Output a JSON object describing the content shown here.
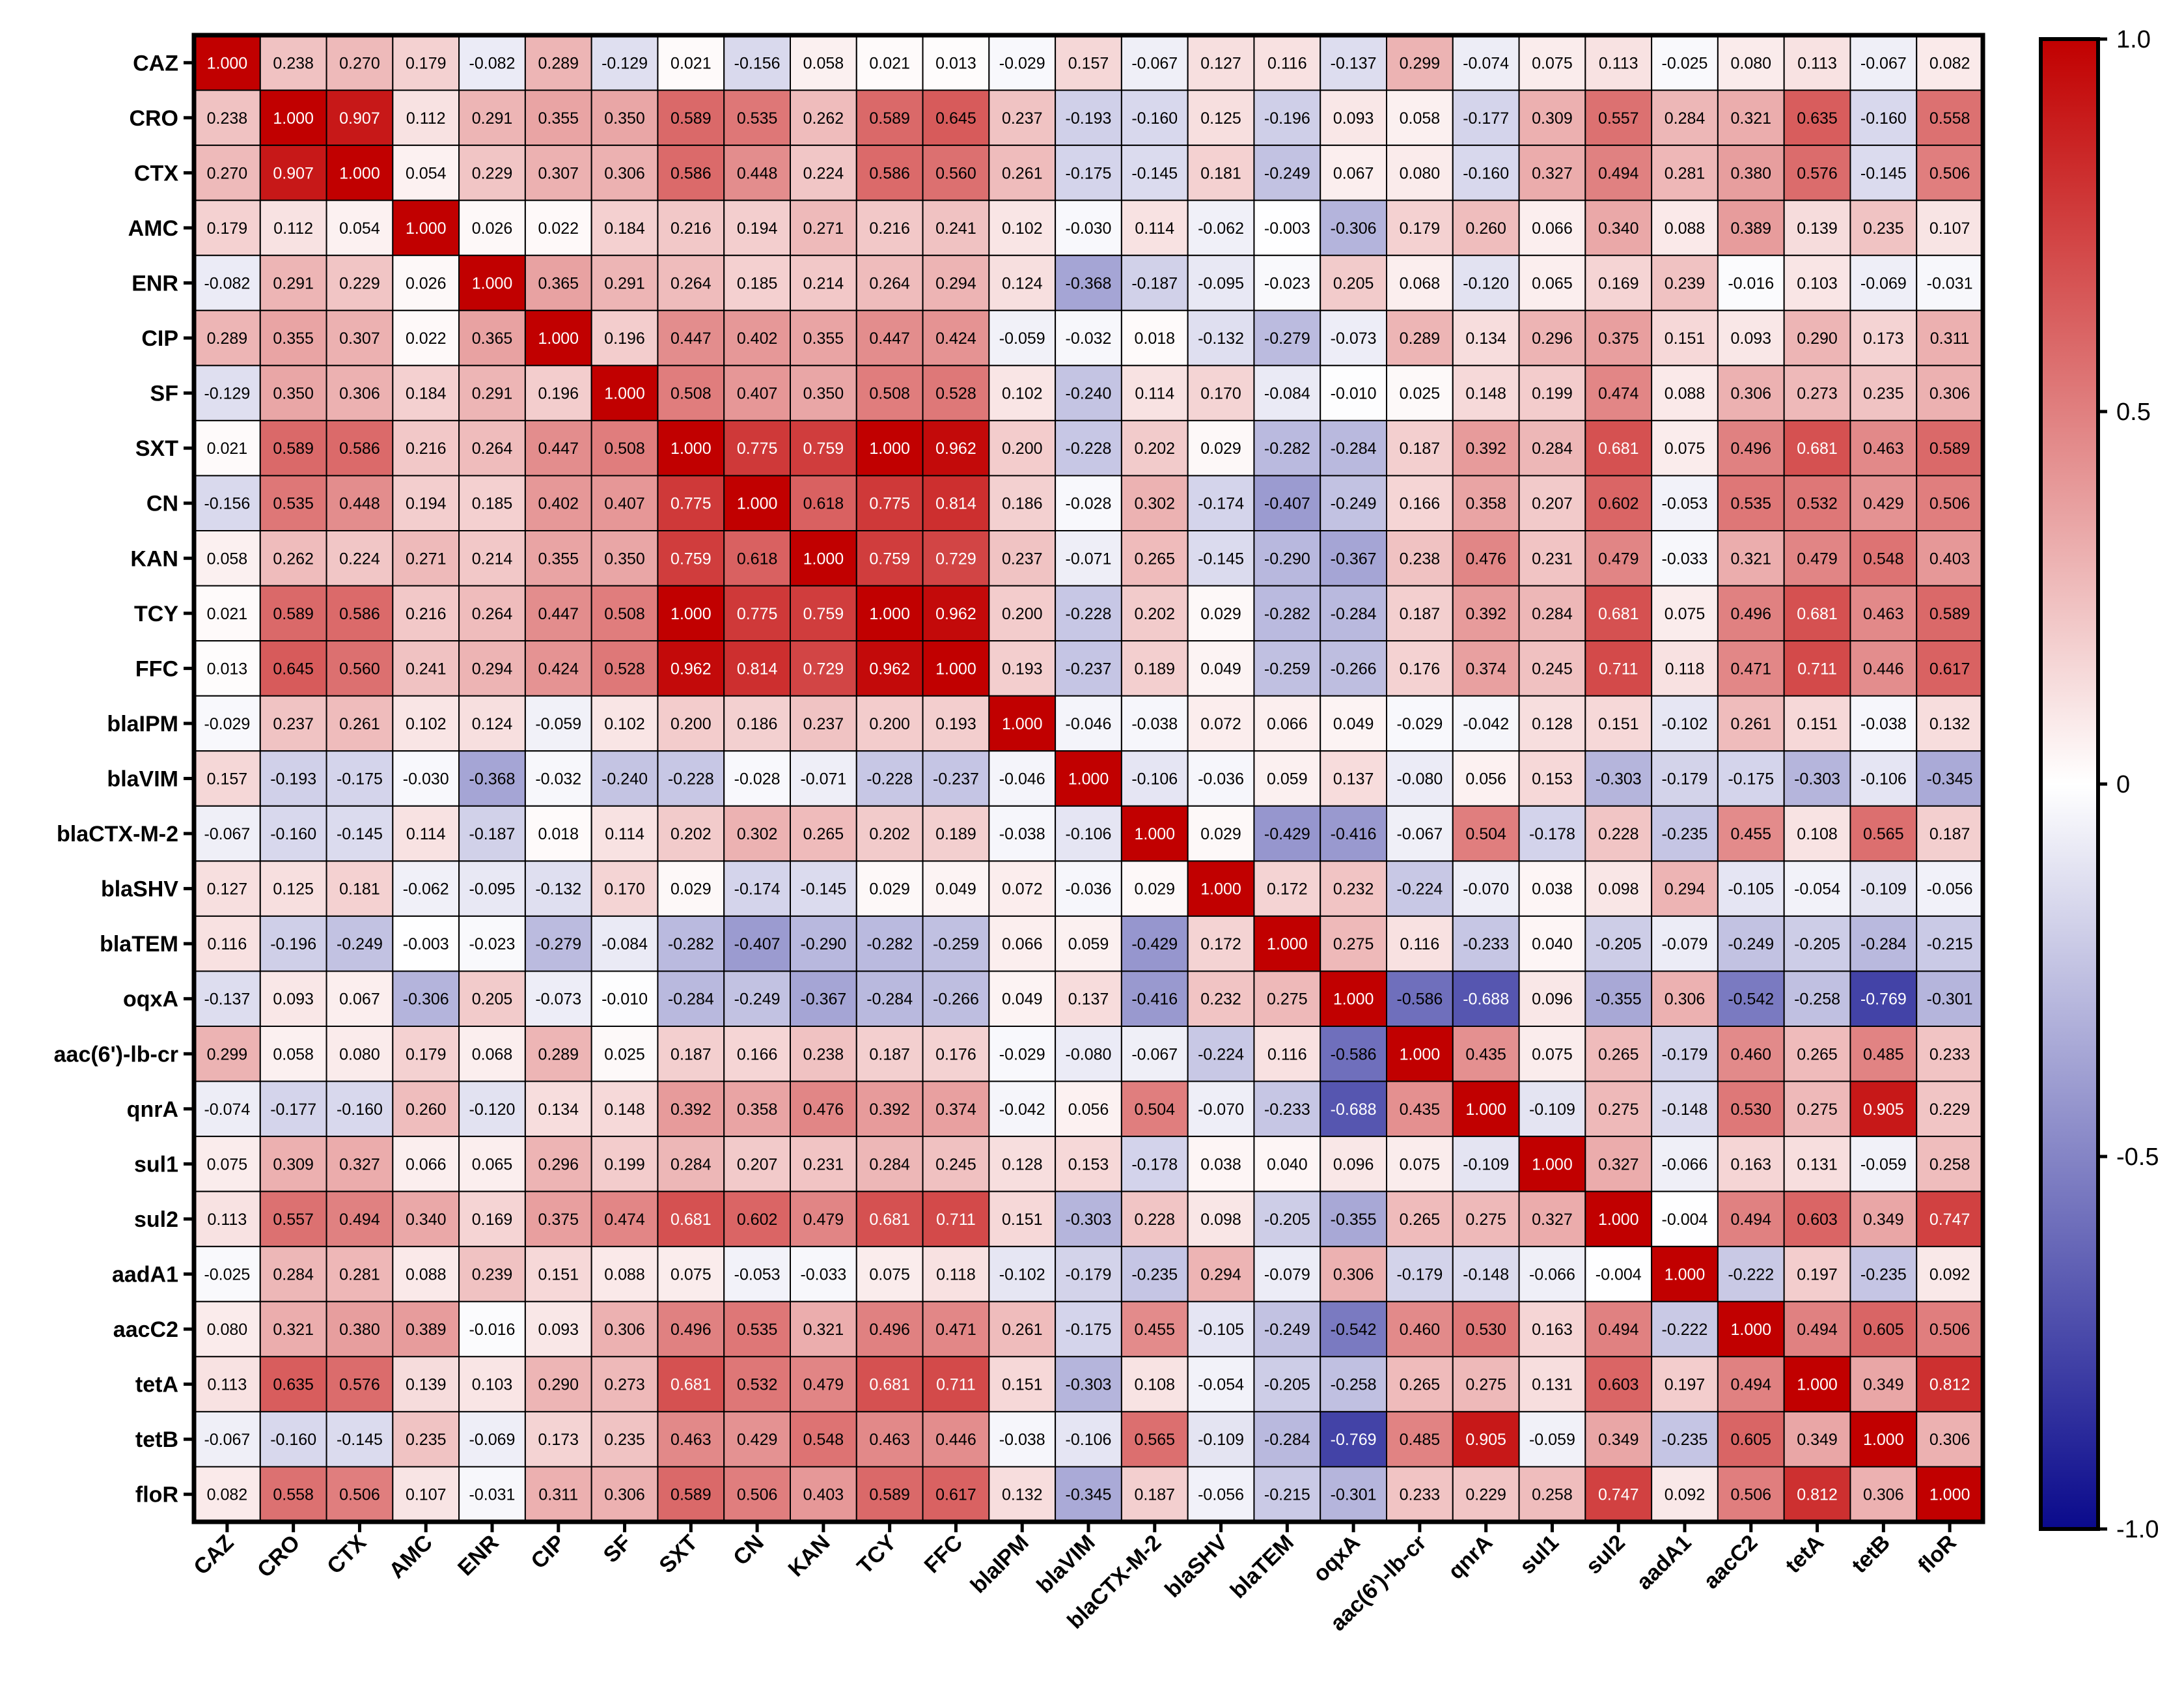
{
  "chart_data": {
    "type": "heatmap",
    "title": "",
    "xlabel": "",
    "ylabel": "",
    "labels": [
      "CAZ",
      "CRO",
      "CTX",
      "AMC",
      "ENR",
      "CIP",
      "SF",
      "SXT",
      "CN",
      "KAN",
      "TCY",
      "FFC",
      "blaIPM",
      "blaVIM",
      "blaCTX-M-2",
      "blaSHV",
      "blaTEM",
      "oqxA",
      "aac(6')-lb-cr",
      "qnrA",
      "sul1",
      "sul2",
      "aadA1",
      "aacC2",
      "tetA",
      "tetB",
      "floR"
    ],
    "values": [
      [
        "1.000",
        "0.238",
        "0.270",
        "0.179",
        "-0.082",
        "0.289",
        "-0.129",
        "0.021",
        "-0.156",
        "0.058",
        "0.021",
        "0.013",
        "-0.029",
        "0.157",
        "-0.067",
        "0.127",
        "0.116",
        "-0.137",
        "0.299",
        "-0.074",
        "0.075",
        "0.113",
        "-0.025",
        "0.080",
        "0.113",
        "-0.067",
        "0.082"
      ],
      [
        "0.238",
        "1.000",
        "0.907",
        "0.112",
        "0.291",
        "0.355",
        "0.350",
        "0.589",
        "0.535",
        "0.262",
        "0.589",
        "0.645",
        "0.237",
        "-0.193",
        "-0.160",
        "0.125",
        "-0.196",
        "0.093",
        "0.058",
        "-0.177",
        "0.309",
        "0.557",
        "0.284",
        "0.321",
        "0.635",
        "-0.160",
        "0.558"
      ],
      [
        "0.270",
        "0.907",
        "1.000",
        "0.054",
        "0.229",
        "0.307",
        "0.306",
        "0.586",
        "0.448",
        "0.224",
        "0.586",
        "0.560",
        "0.261",
        "-0.175",
        "-0.145",
        "0.181",
        "-0.249",
        "0.067",
        "0.080",
        "-0.160",
        "0.327",
        "0.494",
        "0.281",
        "0.380",
        "0.576",
        "-0.145",
        "0.506"
      ],
      [
        "0.179",
        "0.112",
        "0.054",
        "1.000",
        "0.026",
        "0.022",
        "0.184",
        "0.216",
        "0.194",
        "0.271",
        "0.216",
        "0.241",
        "0.102",
        "-0.030",
        "0.114",
        "-0.062",
        "-0.003",
        "-0.306",
        "0.179",
        "0.260",
        "0.066",
        "0.340",
        "0.088",
        "0.389",
        "0.139",
        "0.235",
        "0.107"
      ],
      [
        "-0.082",
        "0.291",
        "0.229",
        "0.026",
        "1.000",
        "0.365",
        "0.291",
        "0.264",
        "0.185",
        "0.214",
        "0.264",
        "0.294",
        "0.124",
        "-0.368",
        "-0.187",
        "-0.095",
        "-0.023",
        "0.205",
        "0.068",
        "-0.120",
        "0.065",
        "0.169",
        "0.239",
        "-0.016",
        "0.103",
        "-0.069",
        "-0.031"
      ],
      [
        "0.289",
        "0.355",
        "0.307",
        "0.022",
        "0.365",
        "1.000",
        "0.196",
        "0.447",
        "0.402",
        "0.355",
        "0.447",
        "0.424",
        "-0.059",
        "-0.032",
        "0.018",
        "-0.132",
        "-0.279",
        "-0.073",
        "0.289",
        "0.134",
        "0.296",
        "0.375",
        "0.151",
        "0.093",
        "0.290",
        "0.173",
        "0.311"
      ],
      [
        "-0.129",
        "0.350",
        "0.306",
        "0.184",
        "0.291",
        "0.196",
        "1.000",
        "0.508",
        "0.407",
        "0.350",
        "0.508",
        "0.528",
        "0.102",
        "-0.240",
        "0.114",
        "0.170",
        "-0.084",
        "-0.010",
        "0.025",
        "0.148",
        "0.199",
        "0.474",
        "0.088",
        "0.306",
        "0.273",
        "0.235",
        "0.306"
      ],
      [
        "0.021",
        "0.589",
        "0.586",
        "0.216",
        "0.264",
        "0.447",
        "0.508",
        "1.000",
        "0.775",
        "0.759",
        "1.000",
        "0.962",
        "0.200",
        "-0.228",
        "0.202",
        "0.029",
        "-0.282",
        "-0.284",
        "0.187",
        "0.392",
        "0.284",
        "0.681",
        "0.075",
        "0.496",
        "0.681",
        "0.463",
        "0.589"
      ],
      [
        "-0.156",
        "0.535",
        "0.448",
        "0.194",
        "0.185",
        "0.402",
        "0.407",
        "0.775",
        "1.000",
        "0.618",
        "0.775",
        "0.814",
        "0.186",
        "-0.028",
        "0.302",
        "-0.174",
        "-0.407",
        "-0.249",
        "0.166",
        "0.358",
        "0.207",
        "0.602",
        "-0.053",
        "0.535",
        "0.532",
        "0.429",
        "0.506"
      ],
      [
        "0.058",
        "0.262",
        "0.224",
        "0.271",
        "0.214",
        "0.355",
        "0.350",
        "0.759",
        "0.618",
        "1.000",
        "0.759",
        "0.729",
        "0.237",
        "-0.071",
        "0.265",
        "-0.145",
        "-0.290",
        "-0.367",
        "0.238",
        "0.476",
        "0.231",
        "0.479",
        "-0.033",
        "0.321",
        "0.479",
        "0.548",
        "0.403"
      ],
      [
        "0.021",
        "0.589",
        "0.586",
        "0.216",
        "0.264",
        "0.447",
        "0.508",
        "1.000",
        "0.775",
        "0.759",
        "1.000",
        "0.962",
        "0.200",
        "-0.228",
        "0.202",
        "0.029",
        "-0.282",
        "-0.284",
        "0.187",
        "0.392",
        "0.284",
        "0.681",
        "0.075",
        "0.496",
        "0.681",
        "0.463",
        "0.589"
      ],
      [
        "0.013",
        "0.645",
        "0.560",
        "0.241",
        "0.294",
        "0.424",
        "0.528",
        "0.962",
        "0.814",
        "0.729",
        "0.962",
        "1.000",
        "0.193",
        "-0.237",
        "0.189",
        "0.049",
        "-0.259",
        "-0.266",
        "0.176",
        "0.374",
        "0.245",
        "0.711",
        "0.118",
        "0.471",
        "0.711",
        "0.446",
        "0.617"
      ],
      [
        "-0.029",
        "0.237",
        "0.261",
        "0.102",
        "0.124",
        "-0.059",
        "0.102",
        "0.200",
        "0.186",
        "0.237",
        "0.200",
        "0.193",
        "1.000",
        "-0.046",
        "-0.038",
        "0.072",
        "0.066",
        "0.049",
        "-0.029",
        "-0.042",
        "0.128",
        "0.151",
        "-0.102",
        "0.261",
        "0.151",
        "-0.038",
        "0.132"
      ],
      [
        "0.157",
        "-0.193",
        "-0.175",
        "-0.030",
        "-0.368",
        "-0.032",
        "-0.240",
        "-0.228",
        "-0.028",
        "-0.071",
        "-0.228",
        "-0.237",
        "-0.046",
        "1.000",
        "-0.106",
        "-0.036",
        "0.059",
        "0.137",
        "-0.080",
        "0.056",
        "0.153",
        "-0.303",
        "-0.179",
        "-0.175",
        "-0.303",
        "-0.106",
        "-0.345"
      ],
      [
        "-0.067",
        "-0.160",
        "-0.145",
        "0.114",
        "-0.187",
        "0.018",
        "0.114",
        "0.202",
        "0.302",
        "0.265",
        "0.202",
        "0.189",
        "-0.038",
        "-0.106",
        "1.000",
        "0.029",
        "-0.429",
        "-0.416",
        "-0.067",
        "0.504",
        "-0.178",
        "0.228",
        "-0.235",
        "0.455",
        "0.108",
        "0.565",
        "0.187"
      ],
      [
        "0.127",
        "0.125",
        "0.181",
        "-0.062",
        "-0.095",
        "-0.132",
        "0.170",
        "0.029",
        "-0.174",
        "-0.145",
        "0.029",
        "0.049",
        "0.072",
        "-0.036",
        "0.029",
        "1.000",
        "0.172",
        "0.232",
        "-0.224",
        "-0.070",
        "0.038",
        "0.098",
        "0.294",
        "-0.105",
        "-0.054",
        "-0.109",
        "-0.056"
      ],
      [
        "0.116",
        "-0.196",
        "-0.249",
        "-0.003",
        "-0.023",
        "-0.279",
        "-0.084",
        "-0.282",
        "-0.407",
        "-0.290",
        "-0.282",
        "-0.259",
        "0.066",
        "0.059",
        "-0.429",
        "0.172",
        "1.000",
        "0.275",
        "0.116",
        "-0.233",
        "0.040",
        "-0.205",
        "-0.079",
        "-0.249",
        "-0.205",
        "-0.284",
        "-0.215"
      ],
      [
        "-0.137",
        "0.093",
        "0.067",
        "-0.306",
        "0.205",
        "-0.073",
        "-0.010",
        "-0.284",
        "-0.249",
        "-0.367",
        "-0.284",
        "-0.266",
        "0.049",
        "0.137",
        "-0.416",
        "0.232",
        "0.275",
        "1.000",
        "-0.586",
        "-0.688",
        "0.096",
        "-0.355",
        "0.306",
        "-0.542",
        "-0.258",
        "-0.769",
        "-0.301"
      ],
      [
        "0.299",
        "0.058",
        "0.080",
        "0.179",
        "0.068",
        "0.289",
        "0.025",
        "0.187",
        "0.166",
        "0.238",
        "0.187",
        "0.176",
        "-0.029",
        "-0.080",
        "-0.067",
        "-0.224",
        "0.116",
        "-0.586",
        "1.000",
        "0.435",
        "0.075",
        "0.265",
        "-0.179",
        "0.460",
        "0.265",
        "0.485",
        "0.233"
      ],
      [
        "-0.074",
        "-0.177",
        "-0.160",
        "0.260",
        "-0.120",
        "0.134",
        "0.148",
        "0.392",
        "0.358",
        "0.476",
        "0.392",
        "0.374",
        "-0.042",
        "0.056",
        "0.504",
        "-0.070",
        "-0.233",
        "-0.688",
        "0.435",
        "1.000",
        "-0.109",
        "0.275",
        "-0.148",
        "0.530",
        "0.275",
        "0.905",
        "0.229"
      ],
      [
        "0.075",
        "0.309",
        "0.327",
        "0.066",
        "0.065",
        "0.296",
        "0.199",
        "0.284",
        "0.207",
        "0.231",
        "0.284",
        "0.245",
        "0.128",
        "0.153",
        "-0.178",
        "0.038",
        "0.040",
        "0.096",
        "0.075",
        "-0.109",
        "1.000",
        "0.327",
        "-0.066",
        "0.163",
        "0.131",
        "-0.059",
        "0.258"
      ],
      [
        "0.113",
        "0.557",
        "0.494",
        "0.340",
        "0.169",
        "0.375",
        "0.474",
        "0.681",
        "0.602",
        "0.479",
        "0.681",
        "0.711",
        "0.151",
        "-0.303",
        "0.228",
        "0.098",
        "-0.205",
        "-0.355",
        "0.265",
        "0.275",
        "0.327",
        "1.000",
        "-0.004",
        "0.494",
        "0.603",
        "0.349",
        "0.747"
      ],
      [
        "-0.025",
        "0.284",
        "0.281",
        "0.088",
        "0.239",
        "0.151",
        "0.088",
        "0.075",
        "-0.053",
        "-0.033",
        "0.075",
        "0.118",
        "-0.102",
        "-0.179",
        "-0.235",
        "0.294",
        "-0.079",
        "0.306",
        "-0.179",
        "-0.148",
        "-0.066",
        "-0.004",
        "1.000",
        "-0.222",
        "0.197",
        "-0.235",
        "0.092"
      ],
      [
        "0.080",
        "0.321",
        "0.380",
        "0.389",
        "-0.016",
        "0.093",
        "0.306",
        "0.496",
        "0.535",
        "0.321",
        "0.496",
        "0.471",
        "0.261",
        "-0.175",
        "0.455",
        "-0.105",
        "-0.249",
        "-0.542",
        "0.460",
        "0.530",
        "0.163",
        "0.494",
        "-0.222",
        "1.000",
        "0.494",
        "0.605",
        "0.506"
      ],
      [
        "0.113",
        "0.635",
        "0.576",
        "0.139",
        "0.103",
        "0.290",
        "0.273",
        "0.681",
        "0.532",
        "0.479",
        "0.681",
        "0.711",
        "0.151",
        "-0.303",
        "0.108",
        "-0.054",
        "-0.205",
        "-0.258",
        "0.265",
        "0.275",
        "0.131",
        "0.603",
        "0.197",
        "0.494",
        "1.000",
        "0.349",
        "0.812"
      ],
      [
        "-0.067",
        "-0.160",
        "-0.145",
        "0.235",
        "-0.069",
        "0.173",
        "0.235",
        "0.463",
        "0.429",
        "0.548",
        "0.463",
        "0.446",
        "-0.038",
        "-0.106",
        "0.565",
        "-0.109",
        "-0.284",
        "-0.769",
        "0.485",
        "0.905",
        "-0.059",
        "0.349",
        "-0.235",
        "0.605",
        "0.349",
        "1.000",
        "0.306"
      ],
      [
        "0.082",
        "0.558",
        "0.506",
        "0.107",
        "-0.031",
        "0.311",
        "0.306",
        "0.589",
        "0.506",
        "0.403",
        "0.589",
        "0.617",
        "0.132",
        "-0.345",
        "0.187",
        "-0.056",
        "-0.215",
        "-0.301",
        "0.233",
        "0.229",
        "0.258",
        "0.747",
        "0.092",
        "0.506",
        "0.812",
        "0.306",
        "1.000"
      ]
    ],
    "colorbar": {
      "min": -1.0,
      "max": 1.0,
      "ticks": [
        1.0,
        0.5,
        0,
        -0.5,
        -1.0
      ],
      "tick_labels": [
        "1.0",
        "0.5",
        "0",
        "-0.5",
        "-1.0"
      ]
    },
    "colors": {
      "negative": "#0a0a8c",
      "neutral": "#ffffff",
      "positive": "#c10000"
    }
  }
}
